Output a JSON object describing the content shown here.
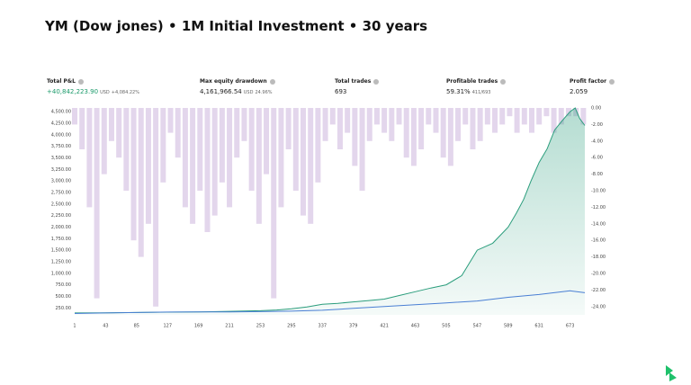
{
  "title": "YM (Dow jones) • 1M Initial Investment • 30 years",
  "stats": [
    {
      "label": "Total P&L",
      "value": "+40,842,223.90",
      "unit": "USD",
      "sub": "+4,084.22%"
    },
    {
      "label": "Max equity drawdown",
      "value": "4,161,966.54",
      "unit": "USD",
      "sub": "24.96%"
    },
    {
      "label": "Total trades",
      "value": "693"
    },
    {
      "label": "Profitable trades",
      "value": "59.31%",
      "sub": "411/693"
    },
    {
      "label": "Profit factor",
      "value": "2.059"
    }
  ],
  "chart_data": {
    "type": "line",
    "xlim": [
      1,
      693
    ],
    "xticks": [
      1,
      43,
      85,
      127,
      169,
      211,
      253,
      295,
      337,
      379,
      421,
      463,
      505,
      547,
      589,
      631,
      673
    ],
    "ylim": [
      100,
      4580
    ],
    "yticks": [
      {
        "value": 250,
        "label": "250.00"
      },
      {
        "value": 500,
        "label": "500.00"
      },
      {
        "value": 750,
        "label": "750.00"
      },
      {
        "value": 1000,
        "label": "1,000.00"
      },
      {
        "value": 1250,
        "label": "1,250.00"
      },
      {
        "value": 1500,
        "label": "1,500.00"
      },
      {
        "value": 1750,
        "label": "1,750.00"
      },
      {
        "value": 2000,
        "label": "2,000.00"
      },
      {
        "value": 2250,
        "label": "2,250.00"
      },
      {
        "value": 2500,
        "label": "2,500.00"
      },
      {
        "value": 2750,
        "label": "2,750.00"
      },
      {
        "value": 3000,
        "label": "3,000.00"
      },
      {
        "value": 3250,
        "label": "3,250.00"
      },
      {
        "value": 3500,
        "label": "3,500.00"
      },
      {
        "value": 3750,
        "label": "3,750.00"
      },
      {
        "value": 4000,
        "label": "4,000.00"
      },
      {
        "value": 4250,
        "label": "4,250.00"
      },
      {
        "value": 4500,
        "label": "4,500.00"
      }
    ],
    "y2lim": [
      -25,
      0
    ],
    "y2ticks": [
      {
        "value": 0,
        "label": "0.00"
      },
      {
        "value": -2,
        "label": "-2.00"
      },
      {
        "value": -4,
        "label": "-4.00"
      },
      {
        "value": -6,
        "label": "-6.00"
      },
      {
        "value": -8,
        "label": "-8.00"
      },
      {
        "value": -10,
        "label": "-10.00"
      },
      {
        "value": -12,
        "label": "-12.00"
      },
      {
        "value": -14,
        "label": "-14.00"
      },
      {
        "value": -16,
        "label": "-16.00"
      },
      {
        "value": -18,
        "label": "-18.00"
      },
      {
        "value": -20,
        "label": "-20.00"
      },
      {
        "value": -22,
        "label": "-22.00"
      },
      {
        "value": -24,
        "label": "-24.00"
      }
    ],
    "series": [
      {
        "color": "#2a9d7c",
        "fill": true,
        "x": [
          1,
          43,
          85,
          127,
          169,
          211,
          253,
          275,
          295,
          316,
          337,
          358,
          379,
          400,
          421,
          442,
          463,
          484,
          505,
          526,
          547,
          568,
          589,
          600,
          610,
          620,
          631,
          642,
          652,
          662,
          673,
          680,
          686,
          693
        ],
        "values": [
          140,
          145,
          150,
          158,
          165,
          175,
          190,
          205,
          230,
          270,
          330,
          350,
          380,
          410,
          440,
          520,
          600,
          680,
          750,
          950,
          1500,
          1650,
          2000,
          2300,
          2600,
          3000,
          3400,
          3700,
          4100,
          4300,
          4500,
          4580,
          4350,
          4200
        ]
      },
      {
        "color": "#4a7fd4",
        "x": [
          1,
          43,
          85,
          127,
          169,
          211,
          253,
          295,
          337,
          379,
          421,
          463,
          505,
          547,
          589,
          631,
          673,
          693
        ],
        "values": [
          130,
          140,
          150,
          160,
          162,
          165,
          170,
          180,
          200,
          240,
          280,
          320,
          360,
          400,
          480,
          540,
          620,
          580
        ]
      },
      {
        "type": "bar",
        "axis": "y2",
        "color": "#e3d6ec",
        "x": [
          1,
          11,
          21,
          31,
          41,
          51,
          61,
          71,
          81,
          91,
          101,
          111,
          121,
          131,
          141,
          151,
          161,
          171,
          181,
          191,
          201,
          211,
          221,
          231,
          241,
          251,
          261,
          271,
          281,
          291,
          301,
          311,
          321,
          331,
          341,
          351,
          361,
          371,
          381,
          391,
          401,
          411,
          421,
          431,
          441,
          451,
          461,
          471,
          481,
          491,
          501,
          511,
          521,
          531,
          541,
          551,
          561,
          571,
          581,
          591,
          601,
          611,
          621,
          631,
          641,
          651,
          661,
          671,
          681,
          691
        ],
        "values": [
          -2,
          -5,
          -12,
          -23,
          -8,
          -4,
          -6,
          -10,
          -16,
          -18,
          -14,
          -24,
          -9,
          -3,
          -6,
          -12,
          -14,
          -10,
          -15,
          -13,
          -9,
          -12,
          -6,
          -4,
          -10,
          -14,
          -8,
          -23,
          -12,
          -5,
          -10,
          -13,
          -14,
          -9,
          -4,
          -2,
          -5,
          -3,
          -7,
          -10,
          -4,
          -2,
          -3,
          -4,
          -2,
          -6,
          -7,
          -5,
          -2,
          -3,
          -6,
          -7,
          -4,
          -2,
          -5,
          -4,
          -2,
          -3,
          -2,
          -1,
          -3,
          -2,
          -3,
          -2,
          -1,
          -3,
          -2,
          -1,
          -1,
          -2
        ]
      }
    ]
  }
}
